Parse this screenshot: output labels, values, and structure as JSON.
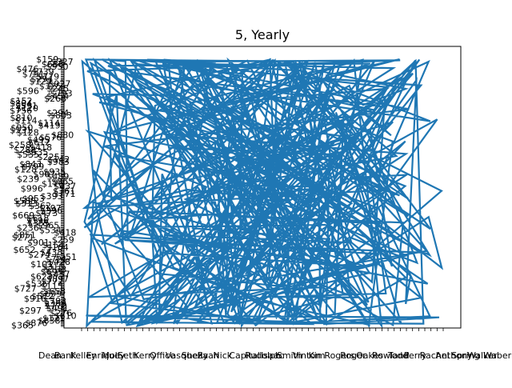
{
  "chart_data": {
    "type": "line",
    "title": "5, Yearly",
    "xlabel": "",
    "ylabel": "",
    "x_axis_kind": "categorical",
    "y_axis_kind": "categorical",
    "x_tick_labels_visible": [
      "Dean",
      "Bank",
      "Kelley",
      "Enrique",
      "Molly",
      "Seth",
      "Kerry",
      "Office",
      "Vasquez",
      "Sheila",
      "Ryan",
      "Nick",
      "Capital",
      "Rudolph",
      "Isaac",
      "Smith",
      "Vinton",
      "Kim",
      "Rogers",
      "Roger",
      "Oakes",
      "Rowland",
      "Todd",
      "Perry",
      "Rachel",
      "Anthony",
      "Spring",
      "Walker",
      "Waber"
    ],
    "y_tick_label_prefix": "$",
    "series": [
      {
        "color": "#1f77b4",
        "description_note": "",
        "points_estimated": 400
      }
    ],
    "grid": false,
    "legend": "none"
  }
}
